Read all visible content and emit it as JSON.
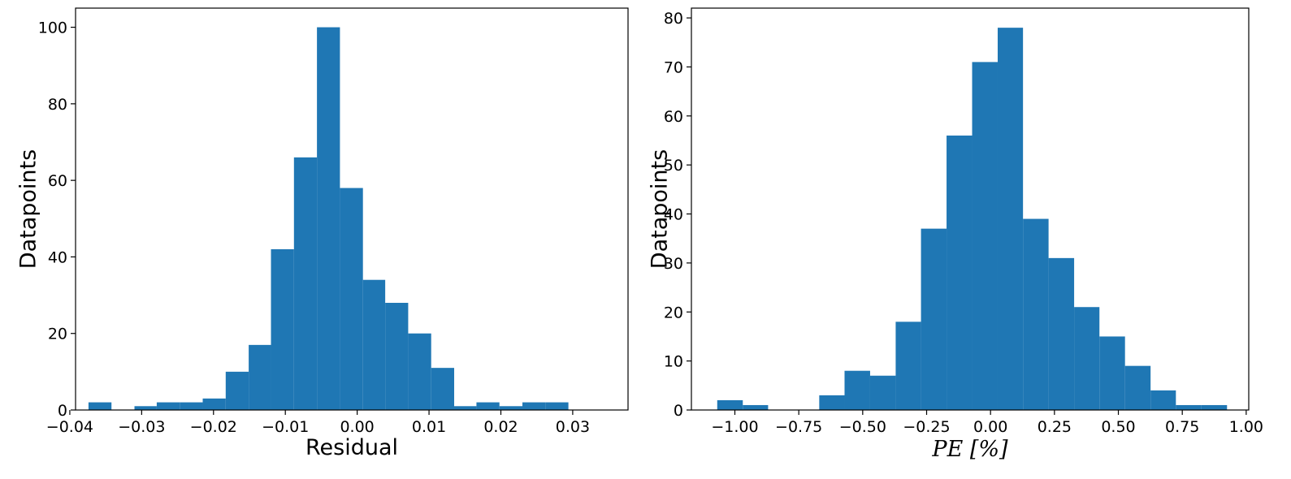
{
  "chart_data": [
    {
      "type": "bar",
      "xlabel": "Residual",
      "ylabel": "Datapoints",
      "xlim": [
        -0.0392,
        0.0377
      ],
      "ylim": [
        0,
        105
      ],
      "xticks": [
        -0.04,
        -0.03,
        -0.02,
        -0.01,
        0.0,
        0.01,
        0.02,
        0.03
      ],
      "xtick_labels": [
        "−0.04",
        "−0.03",
        "−0.02",
        "−0.01",
        "0.00",
        "0.01",
        "0.02",
        "0.03"
      ],
      "yticks": [
        0,
        20,
        40,
        60,
        80,
        100
      ],
      "ytick_labels": [
        "0",
        "20",
        "40",
        "60",
        "80",
        "100"
      ],
      "bin_edges": [
        -0.0374,
        -0.0342,
        -0.031,
        -0.0279,
        -0.0247,
        -0.0215,
        -0.0183,
        -0.0151,
        -0.012,
        -0.0088,
        -0.0056,
        -0.0024,
        0.0008,
        0.0039,
        0.0071,
        0.0103,
        0.0135,
        0.0166,
        0.0198,
        0.023,
        0.0262,
        0.0294,
        0.0325
      ],
      "values": [
        2,
        0,
        1,
        2,
        2,
        3,
        10,
        17,
        42,
        66,
        100,
        58,
        34,
        28,
        20,
        11,
        1,
        2,
        1,
        2,
        2,
        0
      ],
      "grid": false,
      "color": "#1f77b4"
    },
    {
      "type": "bar",
      "xlabel": "PE [%]",
      "ylabel": "Datapoints",
      "xlim": [
        -1.17,
        1.01
      ],
      "ylim": [
        0,
        82
      ],
      "xticks": [
        -1.0,
        -0.75,
        -0.5,
        -0.25,
        0.0,
        0.25,
        0.5,
        0.75,
        1.0
      ],
      "xtick_labels": [
        "−1.00",
        "−0.75",
        "−0.50",
        "−0.25",
        "0.00",
        "0.25",
        "0.50",
        "0.75",
        "1.00"
      ],
      "yticks": [
        0,
        10,
        20,
        30,
        40,
        50,
        60,
        70,
        80
      ],
      "ytick_labels": [
        "0",
        "10",
        "20",
        "30",
        "40",
        "50",
        "60",
        "70",
        "80"
      ],
      "bin_edges": [
        -1.069,
        -0.969,
        -0.87,
        -0.77,
        -0.67,
        -0.571,
        -0.471,
        -0.371,
        -0.272,
        -0.172,
        -0.072,
        0.028,
        0.127,
        0.227,
        0.327,
        0.426,
        0.526,
        0.626,
        0.725,
        0.825,
        0.925
      ],
      "values": [
        2,
        1,
        0,
        0,
        3,
        8,
        7,
        18,
        37,
        56,
        71,
        78,
        39,
        31,
        21,
        15,
        9,
        4,
        1,
        1
      ],
      "grid": false,
      "color": "#1f77b4"
    }
  ]
}
